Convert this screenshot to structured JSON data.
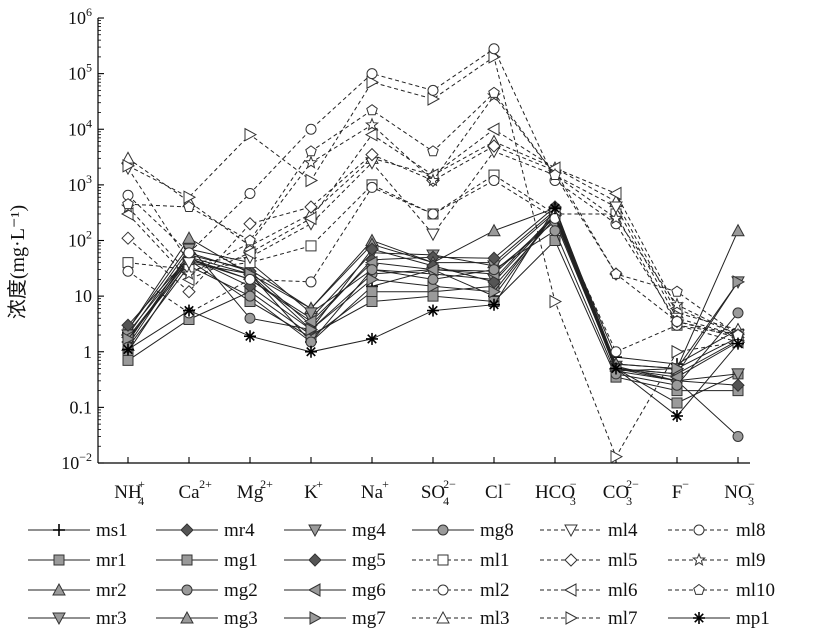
{
  "chart_data": {
    "type": "line",
    "y_scale": "log",
    "ylabel": "浓度(mg·L⁻¹)",
    "ylim": [
      0.01,
      1000000
    ],
    "y_ticks": [
      {
        "value": 0.01,
        "base": "10",
        "exp": "−2"
      },
      {
        "value": 0.1,
        "base": "0.1",
        "exp": ""
      },
      {
        "value": 1,
        "base": "1",
        "exp": ""
      },
      {
        "value": 10,
        "base": "10",
        "exp": ""
      },
      {
        "value": 100,
        "base": "10",
        "exp": "2"
      },
      {
        "value": 1000,
        "base": "10",
        "exp": "3"
      },
      {
        "value": 10000,
        "base": "10",
        "exp": "4"
      },
      {
        "value": 100000,
        "base": "10",
        "exp": "5"
      },
      {
        "value": 1000000,
        "base": "10",
        "exp": "6"
      }
    ],
    "categories": [
      {
        "base": "NH",
        "sub": "4",
        "sup": "+"
      },
      {
        "base": "Ca",
        "sub": "",
        "sup": "2+"
      },
      {
        "base": "Mg",
        "sub": "",
        "sup": "2+"
      },
      {
        "base": "K",
        "sub": "",
        "sup": "+"
      },
      {
        "base": "Na",
        "sub": "",
        "sup": "+"
      },
      {
        "base": "SO",
        "sub": "4",
        "sup": "2−"
      },
      {
        "base": "Cl",
        "sub": "",
        "sup": "−"
      },
      {
        "base": "HCO",
        "sub": "3",
        "sup": "−"
      },
      {
        "base": "CO",
        "sub": "3",
        "sup": "2−"
      },
      {
        "base": "F",
        "sub": "",
        "sup": "−"
      },
      {
        "base": "NO",
        "sub": "3",
        "sup": "−"
      }
    ],
    "legend_position": "bottom",
    "series": [
      {
        "name": "ms1",
        "marker": "plus",
        "dashed": false,
        "values": [
          2.2,
          50,
          25,
          1.5,
          15,
          30,
          10,
          300,
          0.8,
          0.6,
          2.5
        ]
      },
      {
        "name": "mr1",
        "marker": "square",
        "dashed": false,
        "values": [
          1.0,
          45,
          8,
          1.8,
          12,
          12,
          15,
          250,
          0.5,
          0.12,
          0.4
        ]
      },
      {
        "name": "mr2",
        "marker": "triangle-up",
        "dashed": false,
        "values": [
          1.3,
          55,
          30,
          6,
          100,
          40,
          40,
          350,
          0.6,
          0.5,
          1.8
        ]
      },
      {
        "name": "mr3",
        "marker": "triangle-down",
        "dashed": false,
        "values": [
          1.6,
          48,
          20,
          4,
          60,
          55,
          35,
          320,
          0.55,
          0.3,
          0.4
        ]
      },
      {
        "name": "mr4",
        "marker": "diamond",
        "dashed": false,
        "values": [
          1.5,
          60,
          28,
          3,
          45,
          50,
          48,
          400,
          0.5,
          0.4,
          1.6
        ]
      },
      {
        "name": "mg1",
        "marker": "square",
        "dashed": false,
        "values": [
          0.7,
          3.8,
          12,
          2,
          8,
          10,
          8,
          100,
          0.35,
          0.2,
          0.2
        ]
      },
      {
        "name": "mg2",
        "marker": "circle",
        "dashed": false,
        "values": [
          2.5,
          80,
          4,
          2.5,
          25,
          30,
          28,
          220,
          0.5,
          0.3,
          0.03
        ]
      },
      {
        "name": "mg3",
        "marker": "triangle-up",
        "dashed": false,
        "values": [
          2.5,
          110,
          25,
          6,
          85,
          40,
          150,
          380,
          0.6,
          0.5,
          150
        ]
      },
      {
        "name": "mg4",
        "marker": "triangle-down",
        "dashed": false,
        "values": [
          2.0,
          70,
          40,
          5,
          30,
          25,
          20,
          300,
          0.5,
          0.4,
          18
        ]
      },
      {
        "name": "mg5",
        "marker": "diamond",
        "dashed": false,
        "values": [
          3.0,
          50,
          15,
          2.5,
          70,
          35,
          18,
          280,
          0.45,
          0.3,
          0.25
        ]
      },
      {
        "name": "mg6",
        "marker": "triangle-left",
        "dashed": false,
        "values": [
          1.8,
          45,
          20,
          3.5,
          40,
          30,
          25,
          260,
          0.5,
          0.35,
          1.5
        ]
      },
      {
        "name": "mg7",
        "marker": "triangle-right",
        "dashed": false,
        "values": [
          1.7,
          40,
          25,
          2.5,
          20,
          15,
          12,
          300,
          0.45,
          0.5,
          18
        ]
      },
      {
        "name": "mg8",
        "marker": "circle",
        "dashed": false,
        "values": [
          1.2,
          35,
          10,
          1.5,
          30,
          20,
          30,
          150,
          0.4,
          0.25,
          5
        ]
      },
      {
        "name": "ml1",
        "marker": "square",
        "dashed": true,
        "values": [
          40,
          30,
          40,
          80,
          1000,
          300,
          1500,
          300,
          300,
          3,
          2
        ]
      },
      {
        "name": "ml2",
        "marker": "circle",
        "dashed": true,
        "values": [
          28,
          5,
          20,
          18,
          900,
          300,
          1200,
          250,
          1.0,
          3,
          1.5
        ]
      },
      {
        "name": "ml3",
        "marker": "triangle-up",
        "dashed": true,
        "values": [
          3000,
          500,
          80,
          300,
          3000,
          1500,
          6000,
          2000,
          500,
          5,
          2.5
        ]
      },
      {
        "name": "ml4",
        "marker": "triangle-down",
        "dashed": true,
        "values": [
          2000,
          40,
          50,
          200,
          2500,
          130,
          4000,
          1500,
          400,
          4,
          2
        ]
      },
      {
        "name": "ml5",
        "marker": "diamond",
        "dashed": true,
        "values": [
          110,
          12,
          200,
          400,
          3500,
          1200,
          5000,
          1800,
          25,
          3.5,
          1.8
        ]
      },
      {
        "name": "ml6",
        "marker": "triangle-left",
        "dashed": true,
        "values": [
          300,
          20,
          60,
          250,
          8000,
          1500,
          10000,
          2000,
          700,
          6,
          2
        ]
      },
      {
        "name": "ml7",
        "marker": "triangle-right",
        "dashed": true,
        "values": [
          2200,
          600,
          8000,
          1200,
          70000,
          35000,
          200000,
          8,
          0.013,
          1.0,
          1.5
        ]
      },
      {
        "name": "ml8",
        "marker": "circle",
        "dashed": true,
        "values": [
          650,
          60,
          700,
          10000,
          100000,
          50000,
          280000,
          1200,
          200,
          3.5,
          2
        ]
      },
      {
        "name": "ml9",
        "marker": "star",
        "dashed": true,
        "values": [
          400,
          25,
          90,
          2500,
          12000,
          1200,
          40000,
          1500,
          250,
          7,
          2
        ]
      },
      {
        "name": "ml10",
        "marker": "pentagon",
        "dashed": true,
        "values": [
          450,
          400,
          100,
          4000,
          22000,
          4000,
          45000,
          1500,
          25,
          12,
          2
        ]
      },
      {
        "name": "mp1",
        "marker": "asterisk",
        "dashed": false,
        "values": [
          1.1,
          5.5,
          1.9,
          1.0,
          1.7,
          5.5,
          7,
          380,
          0.5,
          0.07,
          1.4
        ]
      }
    ]
  }
}
